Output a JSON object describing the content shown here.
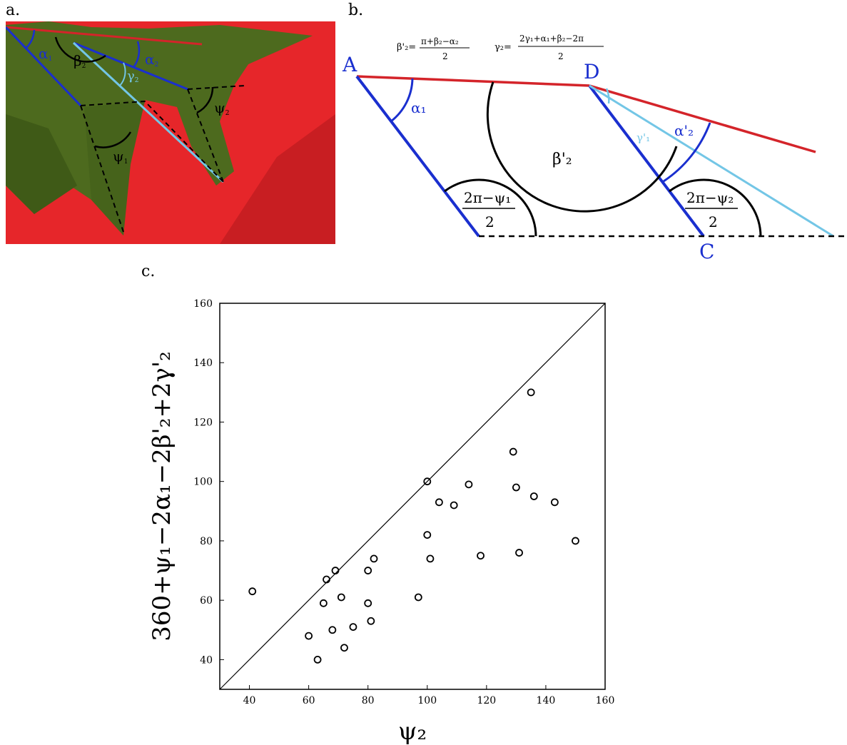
{
  "labels": {
    "a": "a.",
    "b": "b.",
    "c": "c."
  },
  "panel_a": {
    "angles": [
      "α",
      "β",
      "α",
      "γ",
      "ψ",
      "ψ"
    ],
    "subscripts": [
      "1",
      "2",
      "2",
      "2",
      "1",
      "2"
    ],
    "colors": {
      "background": "#e6262a",
      "leaf": "#4d6a1e",
      "leaf_dark": "#3f5a17",
      "red_line": "#d4242a",
      "blue_line": "#1a2fcf",
      "cyan_line": "#73c6e6"
    }
  },
  "panel_b": {
    "formula_beta": {
      "lhs": "β'₂=",
      "num": "π+β₂−α₂",
      "den": "2"
    },
    "formula_gamma": {
      "lhs": "γ₂=",
      "num": "2γ₁+α₁+β₂−2π",
      "den": "2"
    },
    "points": {
      "A": "A",
      "D": "D",
      "C": "C"
    },
    "angle_alpha1": "α₁",
    "angle_beta2": "β'₂",
    "angle_gamma1": "γ'₁",
    "angle_alpha2": "α'₂",
    "frac1": {
      "num": "2π−ψ₁",
      "den": "2"
    },
    "frac2": {
      "num": "2π−ψ₂",
      "den": "2"
    },
    "colors": {
      "red": "#d4242a",
      "blue": "#1a2fcf",
      "cyan": "#73c6e6",
      "black": "#000000"
    }
  },
  "chart_data": {
    "type": "scatter",
    "xlabel": "ψ₂",
    "ylabel": "360+ψ₁−2α₁−2β'₂+2γ'₂",
    "xlim": [
      30,
      160
    ],
    "ylim": [
      30,
      160
    ],
    "xticks": [
      40,
      60,
      80,
      100,
      120,
      140,
      160
    ],
    "yticks": [
      40,
      60,
      80,
      100,
      120,
      140,
      160
    ],
    "identity_line": true,
    "grid": false,
    "points": [
      [
        41,
        63
      ],
      [
        60,
        48
      ],
      [
        63,
        40
      ],
      [
        65,
        59
      ],
      [
        66,
        67
      ],
      [
        68,
        50
      ],
      [
        69,
        70
      ],
      [
        71,
        61
      ],
      [
        72,
        44
      ],
      [
        75,
        51
      ],
      [
        80,
        59
      ],
      [
        80,
        70
      ],
      [
        81,
        53
      ],
      [
        82,
        74
      ],
      [
        97,
        61
      ],
      [
        100,
        82
      ],
      [
        100,
        100
      ],
      [
        101,
        74
      ],
      [
        104,
        93
      ],
      [
        109,
        92
      ],
      [
        114,
        99
      ],
      [
        118,
        75
      ],
      [
        129,
        110
      ],
      [
        130,
        98
      ],
      [
        131,
        76
      ],
      [
        135,
        130
      ],
      [
        136,
        95
      ],
      [
        143,
        93
      ],
      [
        150,
        80
      ]
    ]
  }
}
